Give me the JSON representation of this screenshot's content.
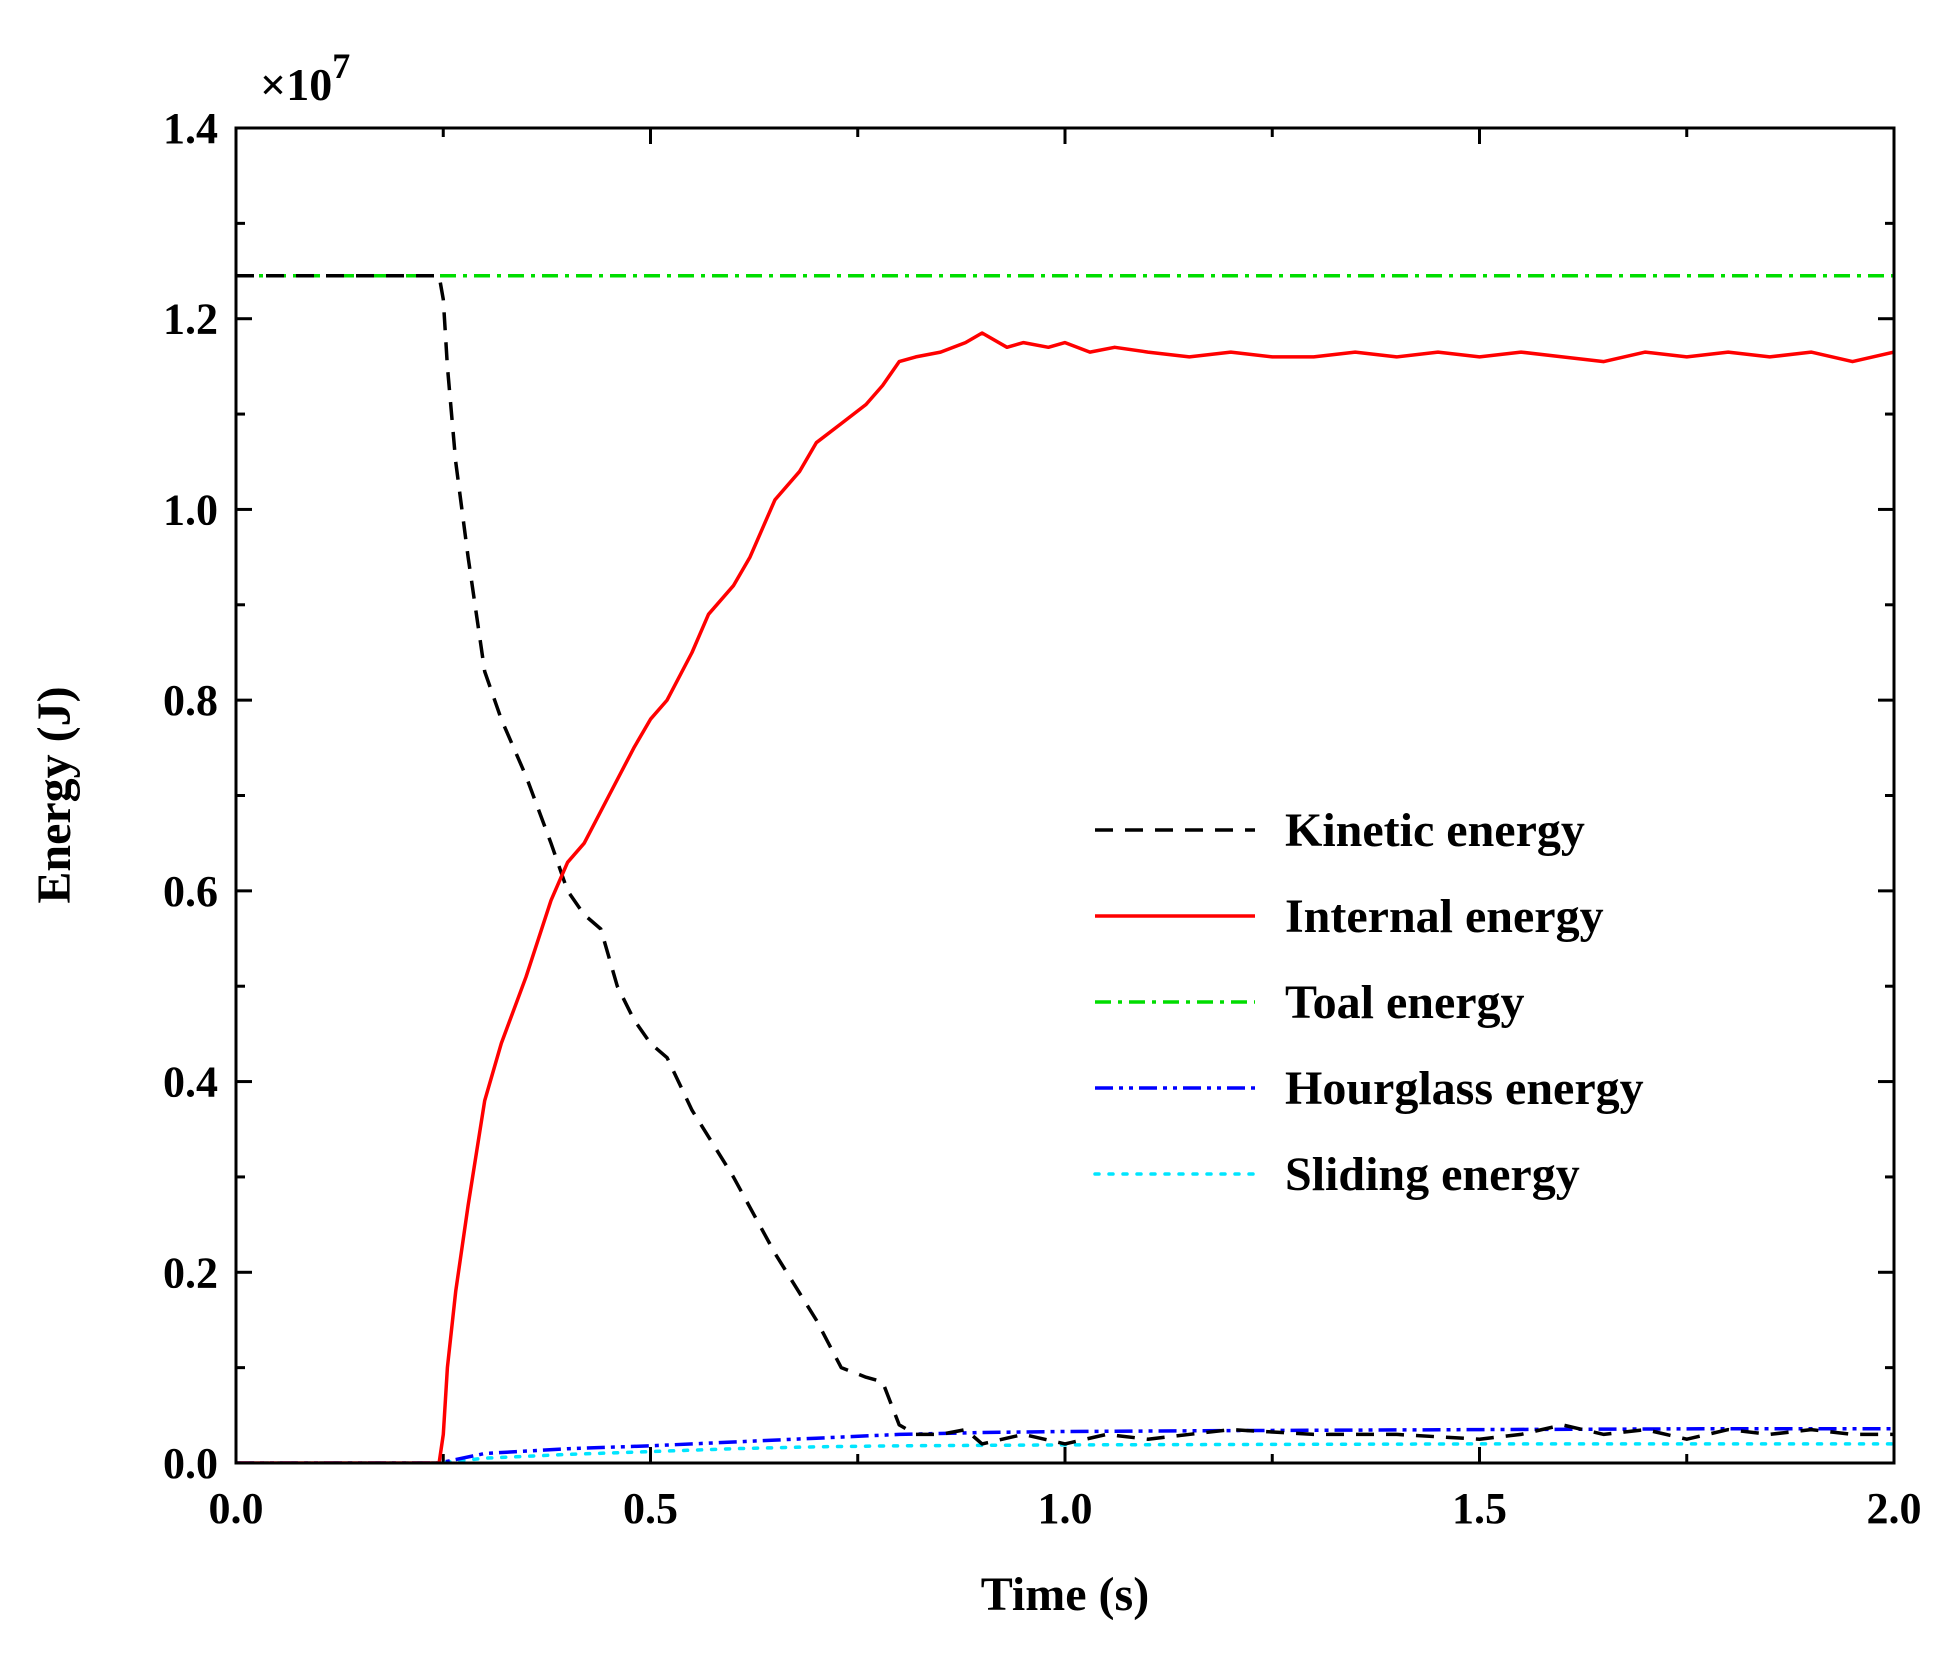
{
  "chart_data": {
    "type": "line",
    "title": "",
    "xlabel": "Time (s)",
    "ylabel": "Energy (J)",
    "y_scale_label": "×10",
    "y_scale_exponent": "7",
    "xlim": [
      0.0,
      2.0
    ],
    "ylim": [
      0.0,
      1.4
    ],
    "x_ticks": [
      "0.0",
      "0.5",
      "1.0",
      "1.5",
      "2.0"
    ],
    "y_ticks": [
      "0.0",
      "0.2",
      "0.4",
      "0.6",
      "0.8",
      "1.0",
      "1.2",
      "1.4"
    ],
    "legend_position": "center-right",
    "series": [
      {
        "name": "Kinetic energy",
        "color": "#000000",
        "style": "dash",
        "x": [
          0.0,
          0.1,
          0.2,
          0.245,
          0.25,
          0.255,
          0.265,
          0.28,
          0.3,
          0.32,
          0.35,
          0.38,
          0.4,
          0.42,
          0.44,
          0.46,
          0.48,
          0.5,
          0.52,
          0.55,
          0.6,
          0.65,
          0.7,
          0.73,
          0.76,
          0.78,
          0.8,
          0.82,
          0.85,
          0.88,
          0.9,
          0.95,
          1.0,
          1.05,
          1.1,
          1.2,
          1.3,
          1.4,
          1.5,
          1.55,
          1.6,
          1.65,
          1.7,
          1.75,
          1.8,
          1.85,
          1.9,
          1.95,
          2.0
        ],
        "y": [
          1.245,
          1.245,
          1.245,
          1.245,
          1.22,
          1.15,
          1.05,
          0.95,
          0.83,
          0.78,
          0.72,
          0.65,
          0.6,
          0.575,
          0.56,
          0.5,
          0.465,
          0.44,
          0.425,
          0.37,
          0.3,
          0.22,
          0.15,
          0.1,
          0.09,
          0.085,
          0.04,
          0.03,
          0.03,
          0.035,
          0.02,
          0.03,
          0.02,
          0.03,
          0.025,
          0.035,
          0.03,
          0.03,
          0.025,
          0.03,
          0.04,
          0.03,
          0.035,
          0.025,
          0.035,
          0.03,
          0.035,
          0.03,
          0.03
        ]
      },
      {
        "name": "Internal energy",
        "color": "#ff0000",
        "style": "solid",
        "x": [
          0.0,
          0.1,
          0.2,
          0.245,
          0.25,
          0.255,
          0.265,
          0.28,
          0.3,
          0.32,
          0.35,
          0.38,
          0.4,
          0.42,
          0.45,
          0.48,
          0.5,
          0.52,
          0.55,
          0.57,
          0.6,
          0.62,
          0.65,
          0.68,
          0.7,
          0.73,
          0.76,
          0.78,
          0.8,
          0.82,
          0.85,
          0.88,
          0.9,
          0.93,
          0.95,
          0.98,
          1.0,
          1.03,
          1.06,
          1.1,
          1.15,
          1.2,
          1.25,
          1.3,
          1.35,
          1.4,
          1.45,
          1.5,
          1.55,
          1.6,
          1.65,
          1.7,
          1.75,
          1.8,
          1.85,
          1.9,
          1.95,
          2.0
        ],
        "y": [
          0.0,
          0.0,
          0.0,
          0.0,
          0.03,
          0.1,
          0.18,
          0.27,
          0.38,
          0.44,
          0.51,
          0.59,
          0.63,
          0.65,
          0.7,
          0.75,
          0.78,
          0.8,
          0.85,
          0.89,
          0.92,
          0.95,
          1.01,
          1.04,
          1.07,
          1.09,
          1.11,
          1.13,
          1.155,
          1.16,
          1.165,
          1.175,
          1.185,
          1.17,
          1.175,
          1.17,
          1.175,
          1.165,
          1.17,
          1.165,
          1.16,
          1.165,
          1.16,
          1.16,
          1.165,
          1.16,
          1.165,
          1.16,
          1.165,
          1.16,
          1.155,
          1.165,
          1.16,
          1.165,
          1.16,
          1.165,
          1.155,
          1.165
        ]
      },
      {
        "name": "Toal energy",
        "color": "#00dd00",
        "style": "dashdot",
        "x": [
          0.0,
          2.0
        ],
        "y": [
          1.245,
          1.245
        ]
      },
      {
        "name": "Hourglass energy",
        "color": "#0000ff",
        "style": "dashdotdot",
        "x": [
          0.0,
          0.245,
          0.3,
          0.4,
          0.5,
          0.6,
          0.7,
          0.8,
          0.9,
          1.0,
          1.2,
          1.5,
          1.8,
          2.0
        ],
        "y": [
          0.0,
          0.0,
          0.01,
          0.015,
          0.018,
          0.022,
          0.026,
          0.03,
          0.032,
          0.033,
          0.034,
          0.035,
          0.036,
          0.036
        ]
      },
      {
        "name": "Sliding energy",
        "color": "#00e5ff",
        "style": "dot",
        "x": [
          0.0,
          0.245,
          0.3,
          0.4,
          0.5,
          0.6,
          0.7,
          0.8,
          1.0,
          1.5,
          2.0
        ],
        "y": [
          0.0,
          0.0,
          0.005,
          0.009,
          0.012,
          0.015,
          0.017,
          0.018,
          0.019,
          0.02,
          0.02
        ]
      }
    ]
  }
}
